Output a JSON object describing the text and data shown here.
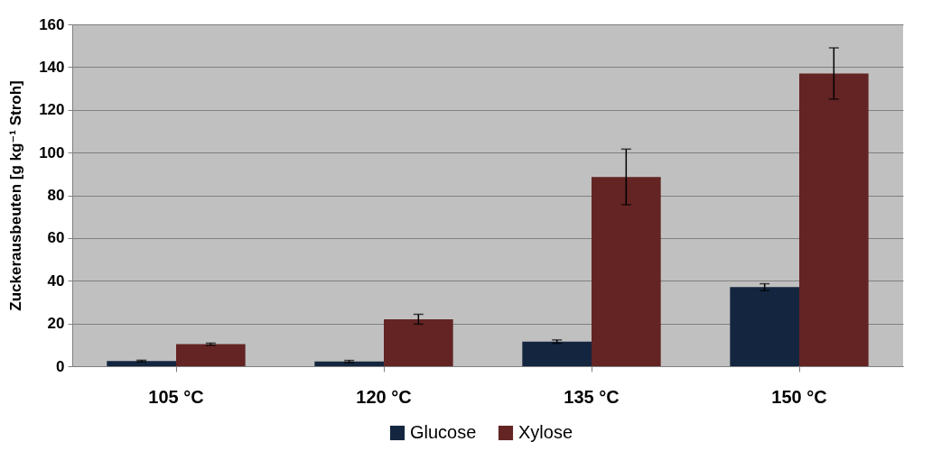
{
  "chart_data": {
    "type": "bar",
    "ylabel": "Zuckerausbeuten [g kg⁻¹ Stroh]",
    "categories": [
      "105 °C",
      "120 °C",
      "135 °C",
      "150 °C"
    ],
    "series": [
      {
        "name": "Glucose",
        "color": "#14263f",
        "values": [
          2.4,
          2.2,
          11.5,
          37
        ],
        "errors": [
          0.4,
          0.5,
          0.8,
          1.6
        ]
      },
      {
        "name": "Xylose",
        "color": "#632423",
        "values": [
          10.3,
          22,
          88.6,
          137
        ],
        "errors": [
          0.5,
          2.3,
          13,
          12
        ]
      }
    ],
    "ylim": [
      0,
      160
    ],
    "yticks": [
      0,
      20,
      40,
      60,
      80,
      100,
      120,
      140,
      160
    ],
    "grid": "y",
    "legend": "bottom"
  }
}
